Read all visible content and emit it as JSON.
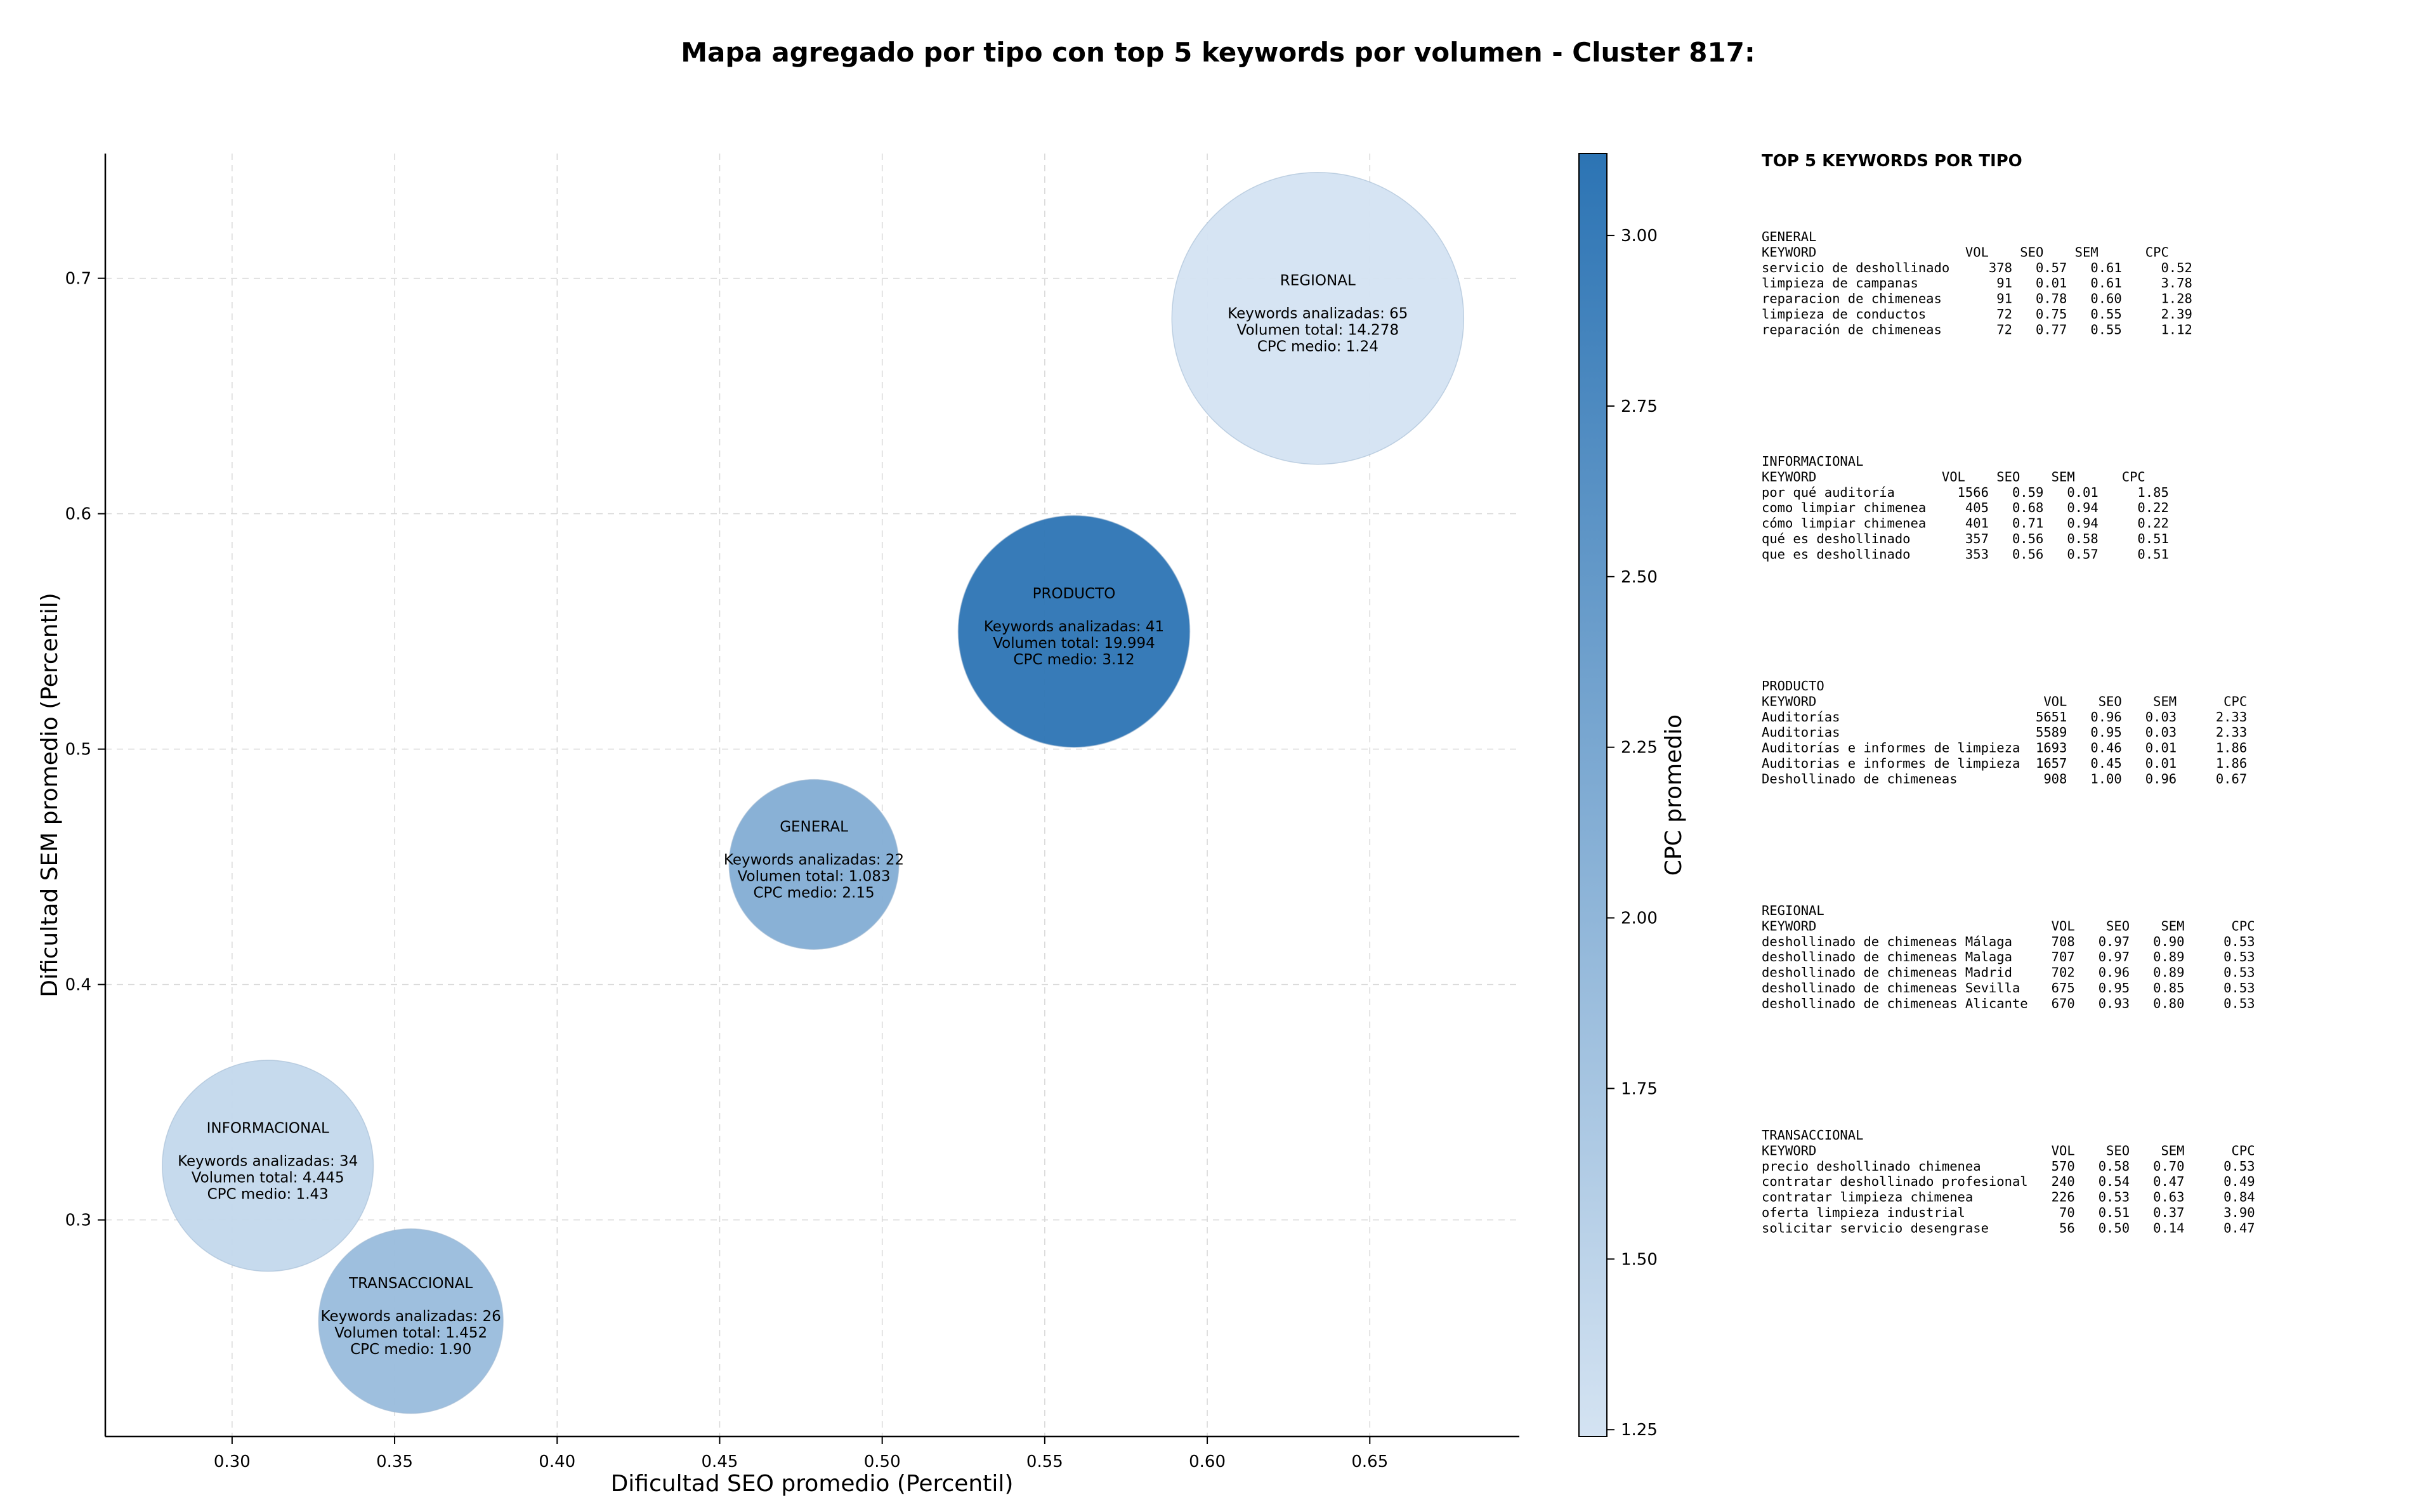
{
  "chart_data": {
    "type": "scatter",
    "title": "Mapa agregado por tipo con top 5 keywords por volumen - Cluster 817:",
    "xlabel": "Dificultad SEO promedio (Percentil)",
    "ylabel": "Dificultad SEM promedio (Percentil)",
    "xlim": [
      0.261,
      0.696
    ],
    "ylim": [
      0.208,
      0.753
    ],
    "xticks": [
      0.3,
      0.35,
      0.4,
      0.45,
      0.5,
      0.55,
      0.6,
      0.65
    ],
    "xtick_labels": [
      "0.30",
      "0.35",
      "0.40",
      "0.45",
      "0.50",
      "0.55",
      "0.60",
      "0.65"
    ],
    "yticks": [
      0.3,
      0.4,
      0.5,
      0.6,
      0.7
    ],
    "ytick_labels": [
      "0.3",
      "0.4",
      "0.5",
      "0.6",
      "0.7"
    ],
    "grid": true,
    "colorbar": {
      "label": "CPC promedio",
      "range": [
        1.24,
        3.12
      ],
      "ticks": [
        1.25,
        1.5,
        1.75,
        2.0,
        2.25,
        2.5,
        2.75,
        3.0
      ],
      "tick_labels": [
        "1.25",
        "1.50",
        "1.75",
        "2.00",
        "2.25",
        "2.50",
        "2.75",
        "3.00"
      ],
      "color_low": "#d4e3f2",
      "color_high": "#2c74b4"
    },
    "points": [
      {
        "name": "INFORMACIONAL",
        "x": 0.311,
        "y": 0.323,
        "keywords": 34,
        "volume": 4445,
        "lines": [
          "Keywords analizadas: 34",
          "Volumen total: 4.445",
          "CPC medio: 1.43"
        ],
        "cpc": 1.43
      },
      {
        "name": "TRANSACCIONAL",
        "x": 0.355,
        "y": 0.257,
        "keywords": 26,
        "volume": 1452,
        "lines": [
          "Keywords analizadas: 26",
          "Volumen total: 1.452",
          "CPC medio: 1.90"
        ],
        "cpc": 1.9
      },
      {
        "name": "GENERAL",
        "x": 0.479,
        "y": 0.451,
        "keywords": 22,
        "volume": 1083,
        "lines": [
          "Keywords analizadas: 22",
          "Volumen total: 1.083",
          "CPC medio: 2.15"
        ],
        "cpc": 2.15
      },
      {
        "name": "PRODUCTO",
        "x": 0.559,
        "y": 0.55,
        "keywords": 41,
        "volume": 19994,
        "lines": [
          "Keywords analizadas: 41",
          "Volumen total: 19.994",
          "CPC medio: 3.12"
        ],
        "cpc": 3.12
      },
      {
        "name": "REGIONAL",
        "x": 0.634,
        "y": 0.683,
        "keywords": 65,
        "volume": 14278,
        "lines": [
          "Keywords analizadas: 65",
          "Volumen total: 14.278",
          "CPC medio: 1.24"
        ],
        "cpc": 1.24
      }
    ]
  },
  "side_panel": {
    "title": "TOP 5 KEYWORDS POR TIPO",
    "groups": [
      {
        "name": "GENERAL",
        "header": "KEYWORD                   VOL    SEO    SEM      CPC",
        "rows": [
          "servicio de deshollinado     378   0.57   0.61     0.52",
          "limpieza de campanas          91   0.01   0.61     3.78",
          "reparacion de chimeneas       91   0.78   0.60     1.28",
          "limpieza de conductos         72   0.75   0.55     2.39",
          "reparación de chimeneas       72   0.77   0.55     1.12"
        ]
      },
      {
        "name": "INFORMACIONAL",
        "header": "KEYWORD                VOL    SEO    SEM      CPC",
        "rows": [
          "por qué auditoría        1566   0.59   0.01     1.85",
          "como limpiar chimenea     405   0.68   0.94     0.22",
          "cómo limpiar chimenea     401   0.71   0.94     0.22",
          "qué es deshollinado       357   0.56   0.58     0.51",
          "que es deshollinado       353   0.56   0.57     0.51"
        ]
      },
      {
        "name": "PRODUCTO",
        "header": "KEYWORD                             VOL    SEO    SEM      CPC",
        "rows": [
          "Auditorías                         5651   0.96   0.03     2.33",
          "Auditorias                         5589   0.95   0.03     2.33",
          "Auditorías e informes de limpieza  1693   0.46   0.01     1.86",
          "Auditorias e informes de limpieza  1657   0.45   0.01     1.86",
          "Deshollinado de chimeneas           908   1.00   0.96     0.67"
        ]
      },
      {
        "name": "REGIONAL",
        "header": "KEYWORD                              VOL    SEO    SEM      CPC",
        "rows": [
          "deshollinado de chimeneas Málaga     708   0.97   0.90     0.53",
          "deshollinado de chimeneas Malaga     707   0.97   0.89     0.53",
          "deshollinado de chimeneas Madrid     702   0.96   0.89     0.53",
          "deshollinado de chimeneas Sevilla    675   0.95   0.85     0.53",
          "deshollinado de chimeneas Alicante   670   0.93   0.80     0.53"
        ]
      },
      {
        "name": "TRANSACCIONAL",
        "header": "KEYWORD                              VOL    SEO    SEM      CPC",
        "rows": [
          "precio deshollinado chimenea         570   0.58   0.70     0.53",
          "contratar deshollinado profesional   240   0.54   0.47     0.49",
          "contratar limpieza chimenea          226   0.53   0.63     0.84",
          "oferta limpieza industrial            70   0.51   0.37     3.90",
          "solicitar servicio desengrase         56   0.50   0.14     0.47"
        ]
      }
    ]
  }
}
